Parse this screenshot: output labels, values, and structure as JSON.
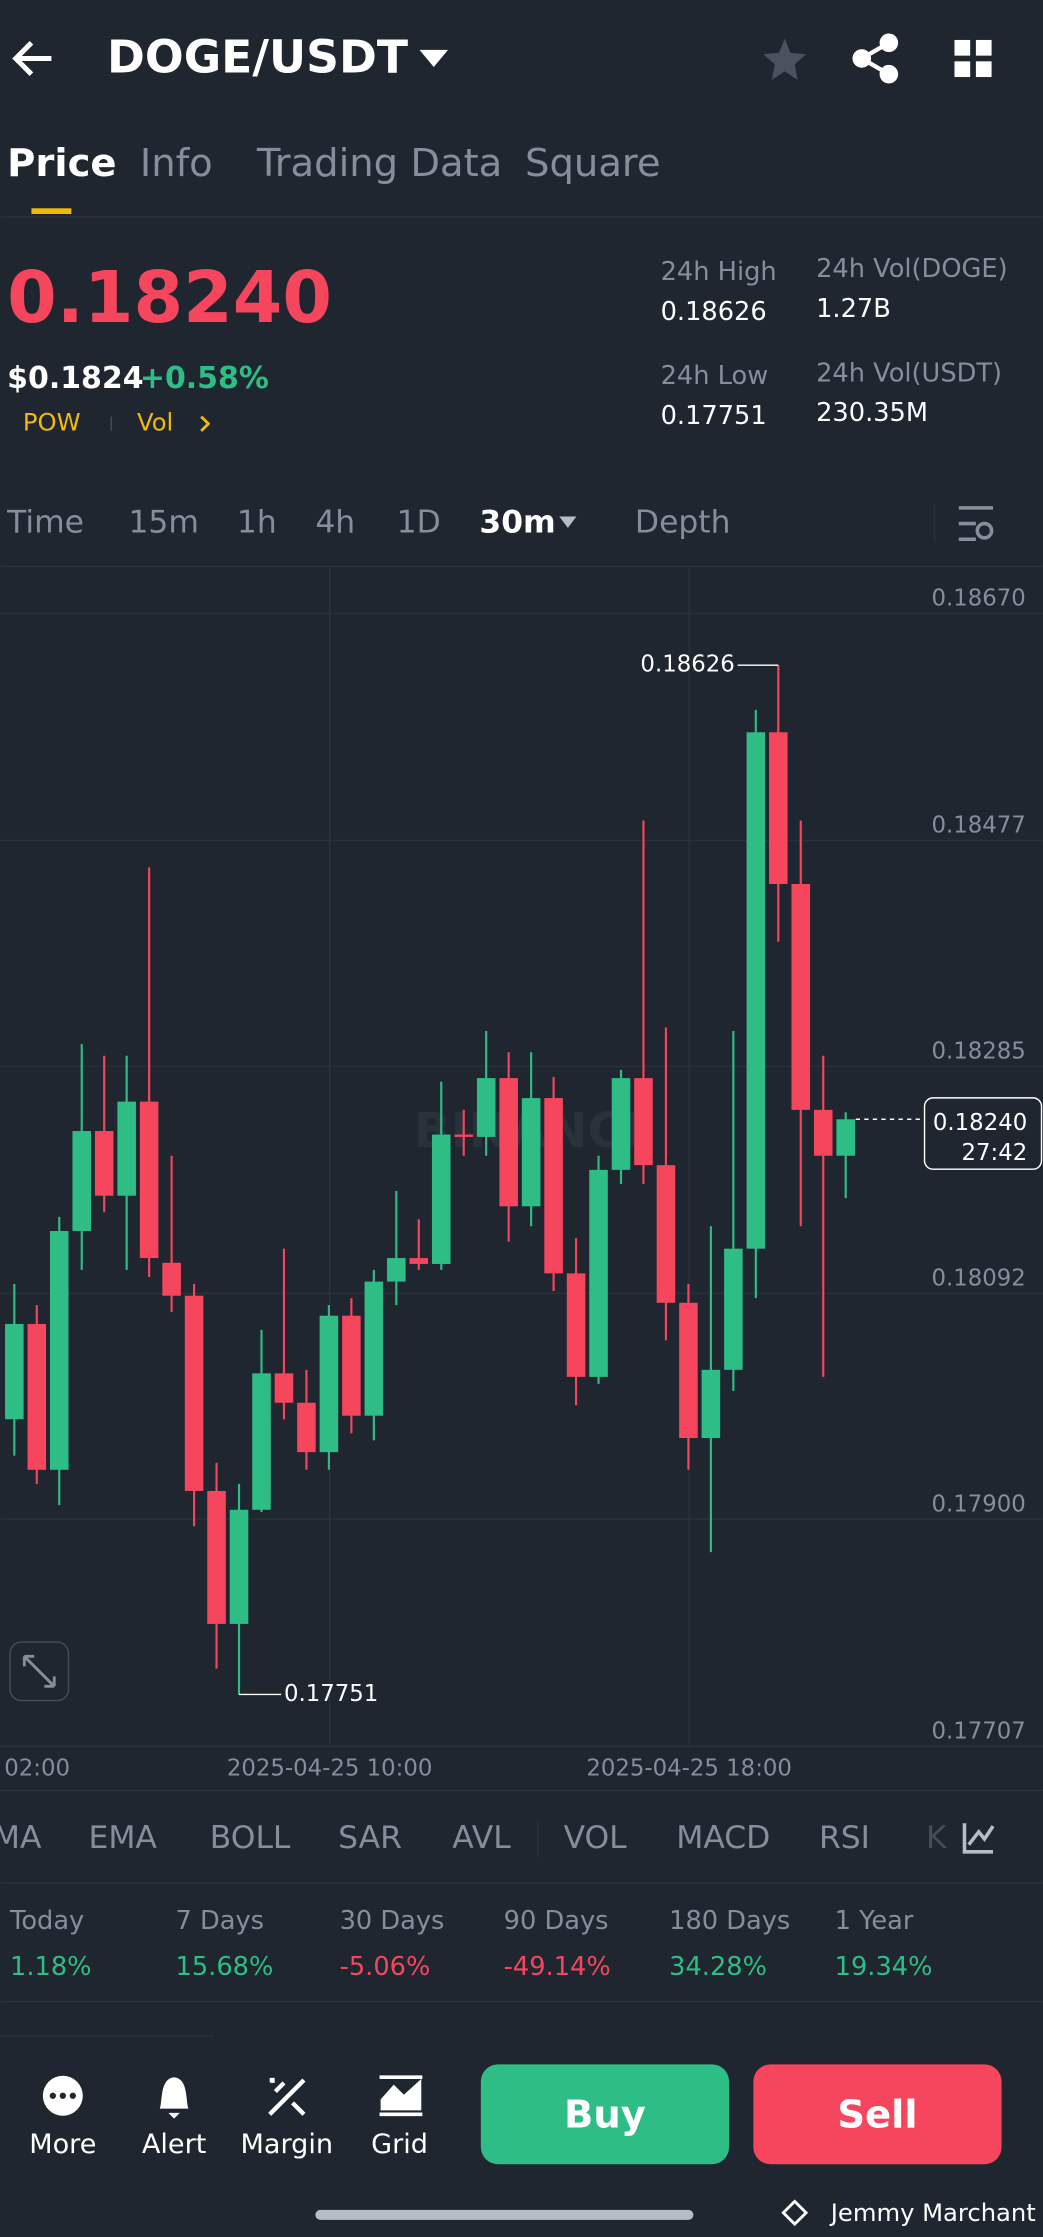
{
  "header": {
    "pair": "DOGE/USDT"
  },
  "tabs": [
    "Price",
    "Info",
    "Trading Data",
    "Square"
  ],
  "ticker": {
    "last": "0.18240",
    "usd": "$0.1824",
    "change": "+0.58%",
    "tags": [
      "POW",
      "Vol"
    ],
    "stats": [
      {
        "label": "24h High",
        "value": "0.18626"
      },
      {
        "label": "24h Vol(DOGE)",
        "value": "1.27B"
      },
      {
        "label": "24h Low",
        "value": "0.17751"
      },
      {
        "label": "24h Vol(USDT)",
        "value": "230.35M"
      }
    ]
  },
  "intervals": [
    "Time",
    "15m",
    "1h",
    "4h",
    "1D",
    "30m",
    "Depth"
  ],
  "chart": {
    "ylim": [
      0.17707,
      0.1867
    ],
    "yticks": [
      {
        "value": 0.1867,
        "label": "0.18670"
      },
      0.18477,
      0.18285,
      0.18092,
      {
        "value": 0.179,
        "label": "0.17900"
      },
      0.17707
    ],
    "time_labels": [
      "02:00",
      "2025-04-25 10:00",
      "2025-04-25 18:00"
    ],
    "high_label": "0.18626",
    "low_label": "0.17751",
    "last_label": "0.18240",
    "countdown": "27:42",
    "watermark": "BINANCE",
    "up_color": "#2ebd85",
    "down_color": "#f6465d",
    "candles": [
      {
        "o": 0.17985,
        "h": 0.181,
        "l": 0.17954,
        "c": 0.18066
      },
      {
        "o": 0.18066,
        "h": 0.18082,
        "l": 0.1793,
        "c": 0.17942
      },
      {
        "o": 0.17942,
        "h": 0.18157,
        "l": 0.17912,
        "c": 0.18145
      },
      {
        "o": 0.18145,
        "h": 0.18304,
        "l": 0.18112,
        "c": 0.1823
      },
      {
        "o": 0.1823,
        "h": 0.18294,
        "l": 0.18161,
        "c": 0.18175
      },
      {
        "o": 0.18175,
        "h": 0.18294,
        "l": 0.18112,
        "c": 0.18255
      },
      {
        "o": 0.18255,
        "h": 0.18454,
        "l": 0.18106,
        "c": 0.18122
      },
      {
        "o": 0.18118,
        "h": 0.18209,
        "l": 0.18076,
        "c": 0.1809
      },
      {
        "o": 0.1809,
        "h": 0.181,
        "l": 0.17894,
        "c": 0.17924
      },
      {
        "o": 0.17924,
        "h": 0.17948,
        "l": 0.17773,
        "c": 0.17811
      },
      {
        "o": 0.17811,
        "h": 0.1793,
        "l": 0.17751,
        "c": 0.17908
      },
      {
        "o": 0.17908,
        "h": 0.18061,
        "l": 0.17906,
        "c": 0.18024
      },
      {
        "o": 0.18024,
        "h": 0.1813,
        "l": 0.17985,
        "c": 0.17999
      },
      {
        "o": 0.17999,
        "h": 0.18027,
        "l": 0.17942,
        "c": 0.17957
      },
      {
        "o": 0.17957,
        "h": 0.18082,
        "l": 0.17942,
        "c": 0.18073
      },
      {
        "o": 0.18073,
        "h": 0.18088,
        "l": 0.17973,
        "c": 0.17988
      },
      {
        "o": 0.17988,
        "h": 0.18112,
        "l": 0.17967,
        "c": 0.18102
      },
      {
        "o": 0.18102,
        "h": 0.18179,
        "l": 0.18082,
        "c": 0.18122
      },
      {
        "o": 0.18122,
        "h": 0.18155,
        "l": 0.18112,
        "c": 0.18117
      },
      {
        "o": 0.18117,
        "h": 0.18272,
        "l": 0.18112,
        "c": 0.18227
      },
      {
        "o": 0.18227,
        "h": 0.18248,
        "l": 0.18209,
        "c": 0.18225
      },
      {
        "o": 0.18225,
        "h": 0.18315,
        "l": 0.18209,
        "c": 0.18275
      },
      {
        "o": 0.18275,
        "h": 0.18297,
        "l": 0.18136,
        "c": 0.18166
      },
      {
        "o": 0.18166,
        "h": 0.18297,
        "l": 0.18149,
        "c": 0.18258
      },
      {
        "o": 0.18258,
        "h": 0.18276,
        "l": 0.18094,
        "c": 0.18109
      },
      {
        "o": 0.18109,
        "h": 0.18139,
        "l": 0.17997,
        "c": 0.18021
      },
      {
        "o": 0.18021,
        "h": 0.18209,
        "l": 0.18015,
        "c": 0.18197
      },
      {
        "o": 0.18197,
        "h": 0.18282,
        "l": 0.18185,
        "c": 0.18275
      },
      {
        "o": 0.18275,
        "h": 0.18494,
        "l": 0.18185,
        "c": 0.18201
      },
      {
        "o": 0.18201,
        "h": 0.18318,
        "l": 0.18052,
        "c": 0.18084
      },
      {
        "o": 0.18084,
        "h": 0.181,
        "l": 0.17942,
        "c": 0.17969
      },
      {
        "o": 0.17969,
        "h": 0.18149,
        "l": 0.17872,
        "c": 0.18027
      },
      {
        "o": 0.18027,
        "h": 0.18315,
        "l": 0.18009,
        "c": 0.1813
      },
      {
        "o": 0.1813,
        "h": 0.18588,
        "l": 0.18088,
        "c": 0.18569
      },
      {
        "o": 0.18569,
        "h": 0.18626,
        "l": 0.18391,
        "c": 0.1844
      },
      {
        "o": 0.1844,
        "h": 0.18494,
        "l": 0.18149,
        "c": 0.18248
      },
      {
        "o": 0.18248,
        "h": 0.18294,
        "l": 0.18021,
        "c": 0.18209
      },
      {
        "o": 0.18209,
        "h": 0.18246,
        "l": 0.18173,
        "c": 0.1824
      }
    ]
  },
  "indicators": [
    "MA",
    "EMA",
    "BOLL",
    "SAR",
    "AVL",
    "VOL",
    "MACD",
    "RSI",
    "K"
  ],
  "performance": [
    {
      "period": "Today",
      "change": "1.18%"
    },
    {
      "period": "7 Days",
      "change": "15.68%"
    },
    {
      "period": "30 Days",
      "change": "-5.06%"
    },
    {
      "period": "90 Days",
      "change": "-49.14%"
    },
    {
      "period": "180 Days",
      "change": "34.28%"
    },
    {
      "period": "1 Year",
      "change": "19.34%"
    }
  ],
  "actions": [
    "More",
    "Alert",
    "Margin",
    "Grid"
  ],
  "buttons": {
    "buy": "Buy",
    "sell": "Sell"
  },
  "watermark": "Jemmy Marchant"
}
